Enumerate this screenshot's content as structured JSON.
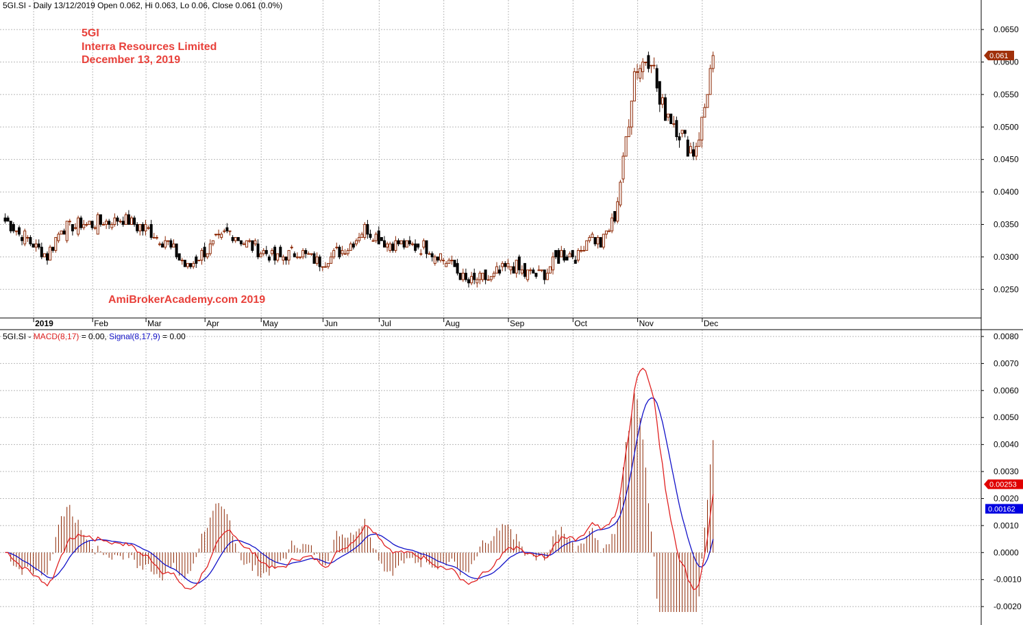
{
  "header": {
    "price_title": "5GI.SI - Daily 13/12/2019 Open 0.062, Hi 0.063, Lo 0.06, Close 0.061 (0.0%)",
    "macd_prefix": "5GI.SI - ",
    "macd_name": "MACD(8,17)",
    "macd_value": " = 0.00, ",
    "signal_name": "Signal(8,17,9)",
    "signal_value": " = 0.00"
  },
  "annotation": {
    "ticker": "5GI",
    "company": "Interra Resources Limited",
    "date": "December 13, 2019",
    "watermark": "AmiBrokerAcademy.com   2019"
  },
  "colors": {
    "up_candle": "#8b2500",
    "down_candle": "#000000",
    "macd_line": "#e02020",
    "signal_line": "#1010c8",
    "histogram": "#8b2500",
    "grid": "#b8b8b8",
    "last_price_tag": "#a0300a",
    "macd_tag": "#e00000",
    "signal_tag": "#0000e0"
  },
  "chart_data": [
    {
      "type": "candlestick",
      "title": "5GI.SI - Daily 13/12/2019 Open 0.062, Hi 0.063, Lo 0.06, Close 0.061 (0.0%)",
      "x_labels": [
        "2019",
        "Feb",
        "Mar",
        "Apr",
        "May",
        "Jun",
        "Jul",
        "Aug",
        "Sep",
        "Oct",
        "Nov",
        "Dec"
      ],
      "y_ticks": [
        "0.0250",
        "0.0300",
        "0.0350",
        "0.0400",
        "0.0450",
        "0.0500",
        "0.0550",
        "0.0600",
        "0.0650"
      ],
      "ylim": [
        0.0225,
        0.0668
      ],
      "last_price_label": "0.061",
      "last_price": 0.061,
      "grid": true,
      "series_desc": "approximate daily OHLC price path read from the figure",
      "anchors": {
        "x": [
          0,
          12,
          15,
          20,
          28,
          42,
          50,
          57,
          65,
          72,
          80,
          88,
          96,
          104,
          112,
          122,
          128,
          135,
          142,
          150,
          158,
          164,
          172,
          180,
          186,
          192,
          198,
          204,
          208,
          212,
          217,
          220,
          224,
          230,
          233,
          236,
          241,
          245,
          248,
          252
        ],
        "y": [
          0.0355,
          0.0312,
          0.03,
          0.0345,
          0.035,
          0.0358,
          0.0342,
          0.0325,
          0.0282,
          0.0312,
          0.034,
          0.0315,
          0.0298,
          0.0308,
          0.0292,
          0.0315,
          0.0345,
          0.0322,
          0.0318,
          0.0315,
          0.0292,
          0.0262,
          0.0265,
          0.0288,
          0.0272,
          0.0275,
          0.0305,
          0.0302,
          0.0335,
          0.032,
          0.036,
          0.0445,
          0.0588,
          0.0612,
          0.0535,
          0.0522,
          0.0485,
          0.0462,
          0.0505,
          0.061
        ]
      }
    },
    {
      "type": "line",
      "title": "MACD(8,17) = 0.00, Signal(8,17,9) = 0.00",
      "series": [
        {
          "name": "MACD(8,17)",
          "role": "macd"
        },
        {
          "name": "Signal(8,17,9)",
          "role": "signal"
        },
        {
          "role": "histogram"
        }
      ],
      "y_ticks": [
        "-0.0020",
        "-0.0010",
        "0.0000",
        "0.0010",
        "0.0020",
        "0.0030",
        "0.0040",
        "0.0050",
        "0.0060",
        "0.0070",
        "0.0080"
      ],
      "ylim": [
        -0.0022,
        0.008
      ],
      "macd_last_label": "0.00253",
      "signal_last_label": "0.00162",
      "macd_last": 0.00253,
      "signal_last": 0.00162,
      "grid": true
    }
  ]
}
